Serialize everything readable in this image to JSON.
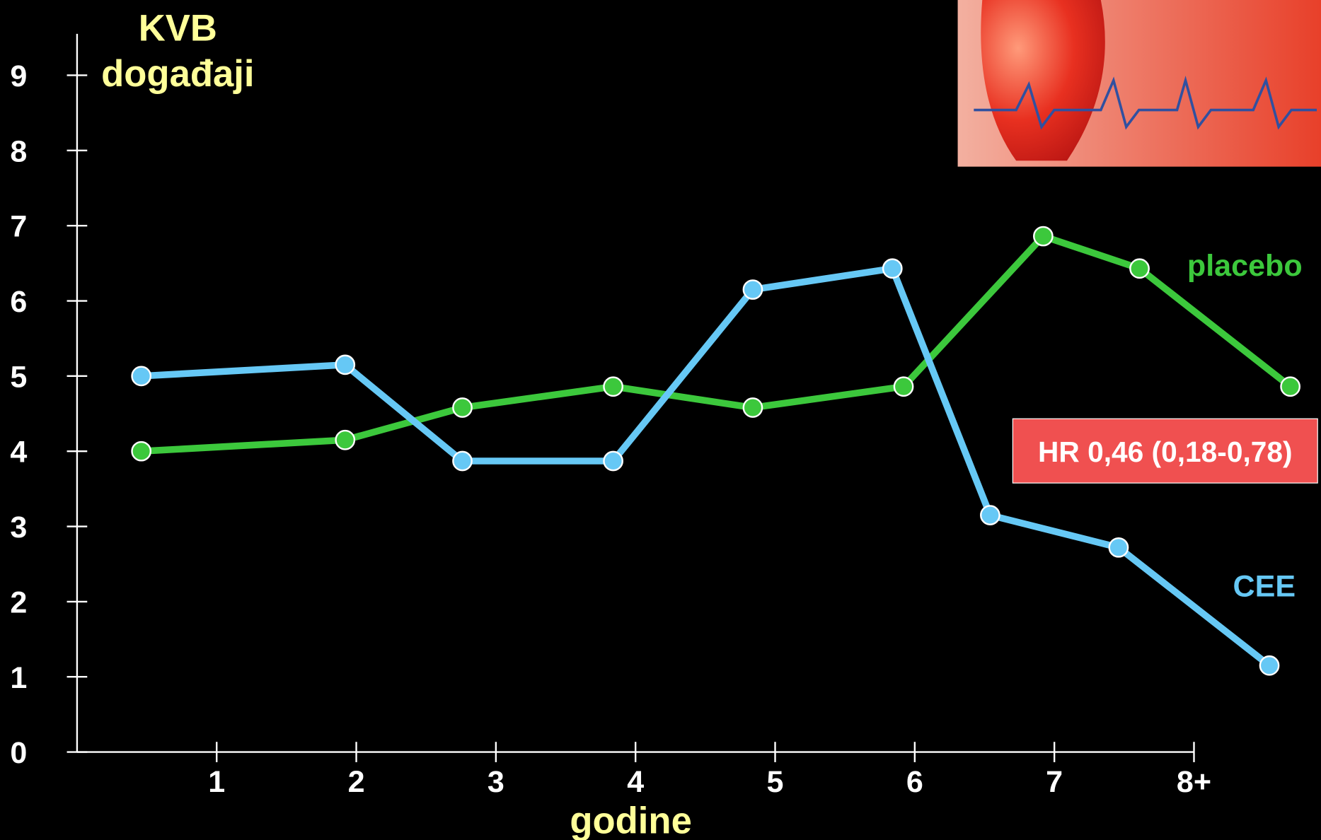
{
  "chart_data": {
    "type": "line",
    "ylabel_lines": [
      "KVB",
      "događaji"
    ],
    "xlabel": "godine",
    "annotation": "HR 0,46 (0,18-0,78)",
    "series": [
      {
        "name": "placebo",
        "color": "#3cc83c",
        "x": [
          0.46,
          1.92,
          2.76,
          3.84,
          4.84,
          5.92,
          6.92,
          7.61,
          8.69
        ],
        "values": [
          4.0,
          4.15,
          4.58,
          4.86,
          4.58,
          4.86,
          6.86,
          6.43,
          4.86
        ]
      },
      {
        "name": "CEE",
        "color": "#66c8f5",
        "x": [
          0.46,
          1.92,
          2.76,
          3.84,
          4.84,
          5.84,
          6.54,
          7.46,
          8.54
        ],
        "values": [
          5.0,
          5.15,
          3.87,
          3.87,
          6.15,
          6.43,
          3.15,
          2.72,
          1.15
        ]
      }
    ],
    "xlim": [
      0,
      8
    ],
    "xticks": [
      1,
      2,
      3,
      4,
      5,
      6,
      7,
      {
        "value": 8,
        "label": "8+"
      }
    ],
    "ylim": [
      0,
      9
    ],
    "yticks": [
      0,
      1,
      2,
      3,
      4,
      5,
      6,
      7,
      8,
      9
    ]
  }
}
